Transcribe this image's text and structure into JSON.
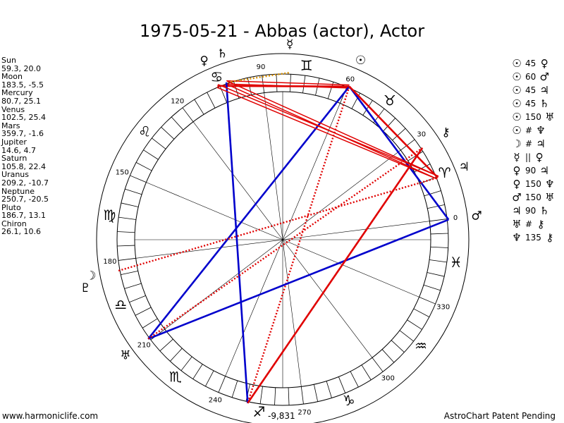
{
  "title": "1975-05-21 - Abbas (actor), Actor",
  "planets": [
    {
      "name": "Sun",
      "values": "59.3, 20.0",
      "lon": 59.3,
      "glyph": "☉"
    },
    {
      "name": "Moon",
      "values": "183.5, -5.5",
      "lon": 183.5,
      "glyph": "☽"
    },
    {
      "name": "Mercury",
      "values": "80.7, 25.1",
      "lon": 80.7,
      "glyph": "☿"
    },
    {
      "name": "Venus",
      "values": "102.5, 25.4",
      "lon": 102.5,
      "glyph": "♀"
    },
    {
      "name": "Mars",
      "values": "359.7, -1.6",
      "lon": 359.7,
      "glyph": "♂"
    },
    {
      "name": "Jupiter",
      "values": "14.6, 4.7",
      "lon": 14.6,
      "glyph": "♃"
    },
    {
      "name": "Saturn",
      "values": "105.8, 22.4",
      "lon": 105.8,
      "glyph": "♄"
    },
    {
      "name": "Uranus",
      "values": "209.2, -10.7",
      "lon": 209.2,
      "glyph": "♅"
    },
    {
      "name": "Neptune",
      "values": "250.7, -20.5",
      "lon": 250.7,
      "glyph": "♆"
    },
    {
      "name": "Pluto",
      "values": "186.7, 13.1",
      "lon": 186.7,
      "glyph": "♇"
    },
    {
      "name": "Chiron",
      "values": "26.1, 10.6",
      "lon": 26.1,
      "glyph": "⚷"
    }
  ],
  "aspects": [
    {
      "p1": "Sun",
      "p2": "Venus",
      "g1": "☉",
      "label": "45",
      "g2": "♀",
      "color": "red",
      "style": "double"
    },
    {
      "p1": "Sun",
      "p2": "Mars",
      "g1": "☉",
      "label": "60",
      "g2": "♂",
      "color": "blue",
      "style": "solid"
    },
    {
      "p1": "Sun",
      "p2": "Jupiter",
      "g1": "☉",
      "label": "45",
      "g2": "♃",
      "color": "red",
      "style": "solid"
    },
    {
      "p1": "Sun",
      "p2": "Saturn",
      "g1": "☉",
      "label": "45",
      "g2": "♄",
      "color": "red",
      "style": "solid"
    },
    {
      "p1": "Sun",
      "p2": "Uranus",
      "g1": "☉",
      "label": "150",
      "g2": "♅",
      "color": "blue",
      "style": "solid"
    },
    {
      "p1": "Sun",
      "p2": "Neptune",
      "g1": "☉",
      "label": "#",
      "g2": "♆",
      "color": "red",
      "style": "dotted"
    },
    {
      "p1": "Moon",
      "p2": "Jupiter",
      "g1": "☽",
      "label": "#",
      "g2": "♃",
      "color": "red",
      "style": "dotted"
    },
    {
      "p1": "Mercury",
      "p2": "Venus",
      "g1": "☿",
      "label": "||",
      "g2": "♀",
      "color": "orange",
      "style": "dotted"
    },
    {
      "p1": "Venus",
      "p2": "Jupiter",
      "g1": "♀",
      "label": "90",
      "g2": "♃",
      "color": "red",
      "style": "double"
    },
    {
      "p1": "Venus",
      "p2": "Neptune",
      "g1": "♀",
      "label": "150",
      "g2": "♆",
      "color": "blue",
      "style": "solid"
    },
    {
      "p1": "Mars",
      "p2": "Uranus",
      "g1": "♂",
      "label": "150",
      "g2": "♅",
      "color": "blue",
      "style": "solid"
    },
    {
      "p1": "Jupiter",
      "p2": "Saturn",
      "g1": "♃",
      "label": "90",
      "g2": "♄",
      "color": "red",
      "style": "double"
    },
    {
      "p1": "Uranus",
      "p2": "Chiron",
      "g1": "♅",
      "label": "#",
      "g2": "⚷",
      "color": "red",
      "style": "dotted"
    },
    {
      "p1": "Neptune",
      "p2": "Chiron",
      "g1": "♆",
      "label": "135",
      "g2": "⚷",
      "color": "red",
      "style": "solid"
    }
  ],
  "degree_labels": [
    "0",
    "30",
    "60",
    "90",
    "120",
    "150",
    "180",
    "210",
    "240",
    "270",
    "300",
    "330"
  ],
  "signs": [
    "♈",
    "♉",
    "♊",
    "♋",
    "♌",
    "♍",
    "♎",
    "♏",
    "♐",
    "♑",
    "♒",
    "♓"
  ],
  "score": "-9,831",
  "footer_left": "www.harmoniclife.com",
  "footer_right": "AstroChart Patent Pending",
  "colors": {
    "red": "#e00000",
    "blue": "#0000cc",
    "orange": "#d89000",
    "ring": "#000000"
  }
}
